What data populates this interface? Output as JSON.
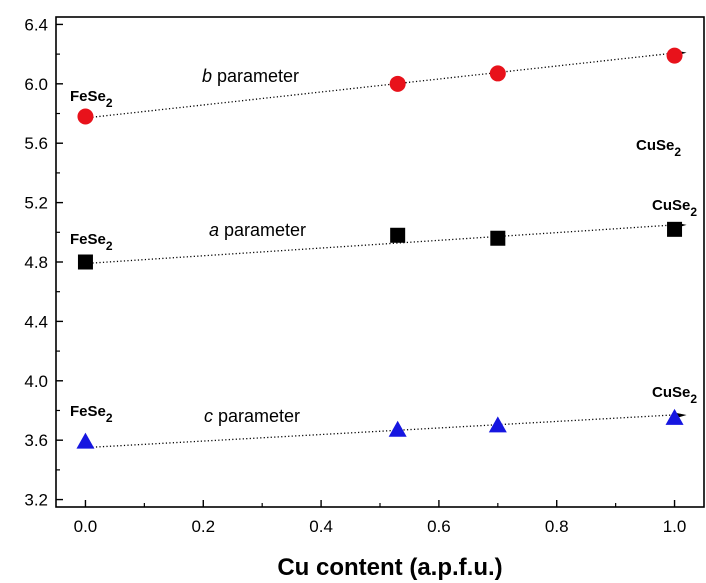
{
  "chart_data": {
    "type": "scatter",
    "title": "",
    "xlabel": "Cu content (a.p.f.u.)",
    "ylabel": "",
    "xlim": [
      -0.05,
      1.05
    ],
    "ylim": [
      3.15,
      6.45
    ],
    "xticks": [
      0.0,
      0.2,
      0.4,
      0.6,
      0.8,
      1.0
    ],
    "xtick_labels": [
      "0.0",
      "0.2",
      "0.4",
      "0.6",
      "0.8",
      "1.0"
    ],
    "yticks": [
      3.2,
      3.6,
      4.0,
      4.4,
      4.8,
      5.2,
      5.6,
      6.0,
      6.4
    ],
    "ytick_labels": [
      "3.2",
      "3.6",
      "4.0",
      "4.4",
      "4.8",
      "5.2",
      "5.6",
      "6.0",
      "6.4"
    ],
    "grid": false,
    "series": [
      {
        "key": "b",
        "label_italic": "b",
        "label_rest": " parameter",
        "marker": "circle",
        "color": "#e8121b",
        "x": [
          0.0,
          0.53,
          0.7,
          1.0
        ],
        "y": [
          5.78,
          6.0,
          6.07,
          6.19
        ],
        "fit": [
          [
            0.0,
            5.77
          ],
          [
            1.0,
            6.21
          ]
        ]
      },
      {
        "key": "a",
        "label_italic": "a",
        "label_rest": " parameter",
        "marker": "square",
        "color": "#000000",
        "x": [
          0.0,
          0.53,
          0.7,
          1.0
        ],
        "y": [
          4.8,
          4.98,
          4.96,
          5.02
        ],
        "fit": [
          [
            0.0,
            4.79
          ],
          [
            1.0,
            5.05
          ]
        ]
      },
      {
        "key": "c",
        "label_italic": "c",
        "label_rest": " parameter",
        "marker": "triangle",
        "color": "#1616e0",
        "x": [
          0.0,
          0.53,
          0.7,
          1.0
        ],
        "y": [
          3.59,
          3.67,
          3.7,
          3.75
        ],
        "fit": [
          [
            0.0,
            3.55
          ],
          [
            1.0,
            3.77
          ]
        ]
      }
    ],
    "annotations": [
      {
        "text": "FeSe",
        "sub": "2"
      },
      {
        "text": "CuSe",
        "sub": "2"
      }
    ]
  }
}
